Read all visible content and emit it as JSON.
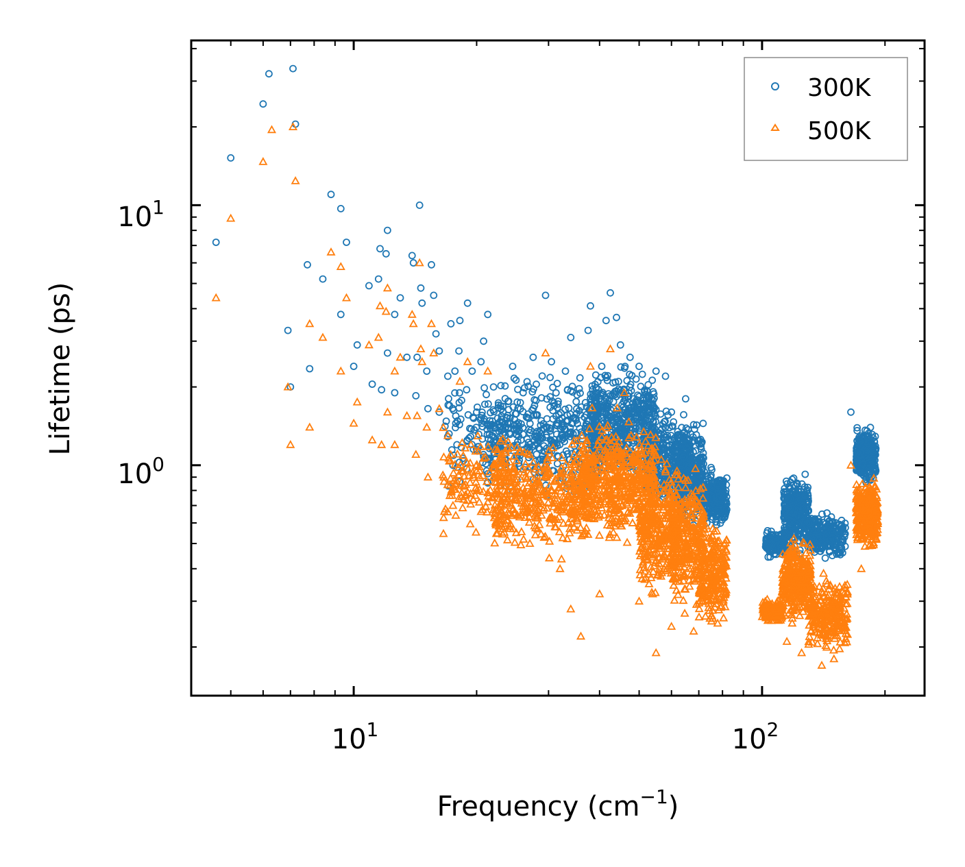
{
  "chart_data": {
    "type": "scatter",
    "title": "",
    "xlabel": "Frequency (cm",
    "xlabel_sup": "−1",
    "xlabel_suffix": ")",
    "ylabel": "Lifetime (ps)",
    "xscale": "log",
    "yscale": "log",
    "xlim": [
      4.0,
      250.0
    ],
    "ylim": [
      0.13,
      43.0
    ],
    "x_ticks": [
      {
        "base": "10",
        "exp": "1",
        "value": 10
      },
      {
        "base": "10",
        "exp": "2",
        "value": 100
      }
    ],
    "y_ticks": [
      {
        "base": "10",
        "exp": "0",
        "value": 1
      },
      {
        "base": "10",
        "exp": "1",
        "value": 10
      }
    ],
    "legend": {
      "position": "top-right"
    },
    "series": [
      {
        "name": "300K",
        "color": "#1f77b4",
        "marker": "circle",
        "points": [
          [
            4.6,
            7.2
          ],
          [
            5.0,
            15.2
          ],
          [
            6.0,
            24.5
          ],
          [
            6.2,
            32.0
          ],
          [
            7.1,
            33.5
          ],
          [
            7.2,
            20.5
          ],
          [
            6.9,
            3.3
          ],
          [
            7.0,
            2.0
          ],
          [
            7.7,
            5.9
          ],
          [
            7.8,
            2.35
          ],
          [
            8.4,
            5.2
          ],
          [
            8.8,
            11.0
          ],
          [
            9.3,
            9.7
          ],
          [
            9.3,
            3.8
          ],
          [
            9.6,
            7.2
          ],
          [
            10.0,
            2.4
          ],
          [
            10.2,
            2.9
          ],
          [
            10.9,
            4.9
          ],
          [
            11.1,
            2.05
          ],
          [
            11.5,
            5.2
          ],
          [
            11.6,
            6.8
          ],
          [
            11.7,
            1.95
          ],
          [
            12.0,
            6.5
          ],
          [
            12.1,
            8.0
          ],
          [
            12.1,
            2.7
          ],
          [
            12.6,
            3.8
          ],
          [
            12.6,
            1.9
          ],
          [
            13.0,
            4.4
          ],
          [
            13.5,
            2.6
          ],
          [
            13.9,
            6.4
          ],
          [
            14.0,
            6.0
          ],
          [
            14.2,
            1.85
          ],
          [
            14.3,
            2.6
          ],
          [
            14.6,
            4.8
          ],
          [
            14.5,
            10.0
          ],
          [
            14.7,
            4.2
          ],
          [
            15.1,
            2.3
          ],
          [
            15.2,
            1.65
          ],
          [
            15.5,
            5.9
          ],
          [
            15.7,
            4.5
          ],
          [
            15.9,
            3.2
          ],
          [
            16.2,
            2.75
          ],
          [
            16.2,
            1.6
          ],
          [
            17.0,
            2.2
          ],
          [
            17.3,
            3.5
          ],
          [
            17.5,
            1.0
          ],
          [
            17.7,
            2.3
          ],
          [
            18.1,
            2.75
          ],
          [
            18.2,
            3.6
          ],
          [
            18.9,
            1.95
          ],
          [
            19.0,
            4.2
          ],
          [
            19.5,
            2.3
          ],
          [
            20.0,
            1.6
          ],
          [
            20.5,
            2.5
          ],
          [
            20.8,
            3.0
          ],
          [
            21.3,
            3.8
          ],
          [
            22.0,
            2.0
          ],
          [
            23.0,
            1.5
          ],
          [
            24.5,
            2.4
          ],
          [
            26.0,
            1.9
          ],
          [
            27.5,
            2.6
          ],
          [
            29.5,
            4.5
          ],
          [
            30.5,
            2.5
          ],
          [
            33.0,
            2.3
          ],
          [
            34.0,
            3.1
          ],
          [
            37.5,
            3.3
          ],
          [
            38.0,
            4.1
          ],
          [
            40.5,
            2.4
          ],
          [
            41.5,
            3.6
          ],
          [
            42.5,
            4.6
          ],
          [
            44.0,
            3.7
          ],
          [
            45.0,
            2.9
          ],
          [
            47.5,
            2.6
          ],
          [
            50.0,
            2.4
          ],
          [
            52.5,
            1.85
          ],
          [
            55.0,
            2.3
          ],
          [
            58.0,
            2.2
          ],
          [
            60.0,
            1.6
          ],
          [
            65.0,
            1.8
          ],
          [
            70.0,
            1.25
          ],
          [
            75.0,
            0.98
          ],
          [
            80.0,
            0.85
          ],
          [
            165.0,
            1.6
          ]
        ],
        "clusters": [
          {
            "x": [
              16.5,
              23.0
            ],
            "ymin": 0.72,
            "ymax": 2.3,
            "n": 80
          },
          {
            "x": [
              21.0,
              40.0
            ],
            "ymin": 0.7,
            "ymax": 2.5,
            "n": 450
          },
          {
            "x": [
              38.0,
              55.0
            ],
            "ymin": 0.75,
            "ymax": 2.6,
            "n": 550
          },
          {
            "x": [
              52.0,
              66.0
            ],
            "ymin": 0.6,
            "ymax": 1.8,
            "n": 320
          },
          {
            "x": [
              62.0,
              72.0
            ],
            "ymin": 0.55,
            "ymax": 1.6,
            "n": 300
          },
          {
            "x": [
              72.0,
              82.0
            ],
            "ymin": 0.55,
            "ymax": 1.0,
            "n": 220
          },
          {
            "x": [
              102.0,
              115.0
            ],
            "ymin": 0.43,
            "ymax": 0.58,
            "n": 160
          },
          {
            "x": [
              113.0,
              130.0
            ],
            "ymin": 0.43,
            "ymax": 1.0,
            "n": 320
          },
          {
            "x": [
              130.0,
              160.0
            ],
            "ymin": 0.42,
            "ymax": 0.68,
            "n": 260
          },
          {
            "x": [
              170.0,
              190.0
            ],
            "ymin": 0.82,
            "ymax": 1.45,
            "n": 320
          }
        ]
      },
      {
        "name": "500K",
        "color": "#ff7f0e",
        "marker": "triangle",
        "points": [
          [
            4.6,
            4.4
          ],
          [
            5.0,
            8.9
          ],
          [
            6.0,
            14.7
          ],
          [
            6.3,
            19.5
          ],
          [
            7.1,
            20.0
          ],
          [
            7.2,
            12.4
          ],
          [
            6.9,
            2.0
          ],
          [
            7.0,
            1.2
          ],
          [
            7.8,
            3.5
          ],
          [
            7.8,
            1.4
          ],
          [
            8.4,
            3.1
          ],
          [
            8.8,
            6.6
          ],
          [
            9.3,
            5.8
          ],
          [
            9.3,
            2.3
          ],
          [
            9.6,
            4.4
          ],
          [
            10.0,
            1.45
          ],
          [
            10.2,
            1.75
          ],
          [
            10.9,
            2.9
          ],
          [
            11.1,
            1.25
          ],
          [
            11.5,
            3.1
          ],
          [
            11.6,
            4.1
          ],
          [
            11.7,
            1.2
          ],
          [
            12.0,
            3.9
          ],
          [
            12.1,
            4.8
          ],
          [
            12.1,
            1.6
          ],
          [
            12.6,
            2.3
          ],
          [
            12.6,
            1.2
          ],
          [
            13.0,
            2.6
          ],
          [
            13.5,
            1.55
          ],
          [
            13.9,
            3.8
          ],
          [
            14.0,
            3.5
          ],
          [
            14.2,
            1.1
          ],
          [
            14.3,
            1.55
          ],
          [
            14.6,
            2.8
          ],
          [
            14.5,
            6.0
          ],
          [
            14.7,
            2.5
          ],
          [
            15.1,
            1.4
          ],
          [
            15.2,
            0.9
          ],
          [
            15.5,
            3.5
          ],
          [
            15.7,
            2.7
          ],
          [
            16.2,
            1.65
          ],
          [
            17.0,
            1.3
          ],
          [
            17.5,
            0.7
          ],
          [
            18.2,
            2.1
          ],
          [
            19.0,
            2.5
          ],
          [
            20.0,
            0.95
          ],
          [
            21.3,
            2.3
          ],
          [
            23.0,
            0.9
          ],
          [
            25.0,
            0.55
          ],
          [
            27.0,
            0.5
          ],
          [
            29.5,
            2.7
          ],
          [
            32.0,
            0.4
          ],
          [
            34.0,
            0.28
          ],
          [
            36.0,
            0.22
          ],
          [
            38.0,
            2.4
          ],
          [
            40.0,
            0.32
          ],
          [
            42.5,
            2.8
          ],
          [
            46.0,
            1.9
          ],
          [
            50.0,
            0.3
          ],
          [
            55.0,
            0.19
          ],
          [
            60.0,
            0.24
          ],
          [
            68.0,
            0.23
          ],
          [
            75.0,
            0.35
          ],
          [
            80.0,
            0.45
          ],
          [
            115.0,
            0.21
          ],
          [
            125.0,
            0.19
          ],
          [
            140.0,
            0.17
          ],
          [
            150.0,
            0.18
          ],
          [
            165.0,
            1.0
          ],
          [
            175.0,
            0.4
          ]
        ],
        "clusters": [
          {
            "x": [
              16.5,
              24.0
            ],
            "ymin": 0.5,
            "ymax": 1.5,
            "n": 140
          },
          {
            "x": [
              22.0,
              38.0
            ],
            "ymin": 0.42,
            "ymax": 1.4,
            "n": 450
          },
          {
            "x": [
              36.0,
              55.0
            ],
            "ymin": 0.45,
            "ymax": 1.7,
            "n": 550
          },
          {
            "x": [
              50.0,
              62.0
            ],
            "ymin": 0.28,
            "ymax": 1.2,
            "n": 320
          },
          {
            "x": [
              60.0,
              72.0
            ],
            "ymin": 0.25,
            "ymax": 1.05,
            "n": 320
          },
          {
            "x": [
              70.0,
              82.0
            ],
            "ymin": 0.22,
            "ymax": 0.65,
            "n": 240
          },
          {
            "x": [
              100.0,
              112.0
            ],
            "ymin": 0.24,
            "ymax": 0.32,
            "n": 150
          },
          {
            "x": [
              112.0,
              132.0
            ],
            "ymin": 0.24,
            "ymax": 0.55,
            "n": 320
          },
          {
            "x": [
              130.0,
              162.0
            ],
            "ymin": 0.18,
            "ymax": 0.4,
            "n": 280
          },
          {
            "x": [
              170.0,
              192.0
            ],
            "ymin": 0.45,
            "ymax": 0.95,
            "n": 320
          }
        ]
      }
    ]
  }
}
